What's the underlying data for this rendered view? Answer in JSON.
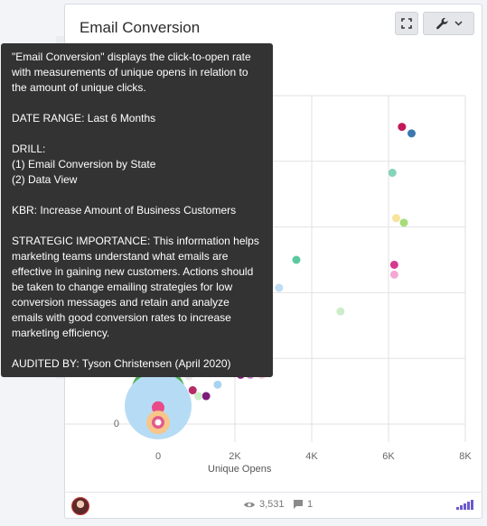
{
  "widget": {
    "title": "Email Conversion",
    "expand_icon": "expand-icon",
    "tools_icon": "wrench-icon",
    "dropdown_icon": "chevron-down-icon"
  },
  "tooltip": {
    "description": "\"Email Conversion\" displays the click-to-open rate with measurements of unique opens in relation to the amount of unique clicks.",
    "date_range": "DATE RANGE: Last 6 Months",
    "drill_heading": "DRILL:",
    "drill_1": "(1) Email Conversion by State",
    "drill_2": "(2) Data View",
    "kbr": "KBR: Increase Amount of Business Customers",
    "strategic": "STRATEGIC IMPORTANCE: This information helps marketing teams understand what emails are effective in gaining new customers. Actions should be taken to change emailing strategies for low conversion messages and retain and analyze emails with good conversion rates to increase marketing efficiency.",
    "audited": "AUDITED BY: Tyson Christensen (April 2020)"
  },
  "footer": {
    "views": "3,531",
    "comments": "1",
    "views_icon": "eye-icon",
    "comments_icon": "comment-icon",
    "signal_icon": "signal-bars-icon"
  },
  "chart_data": {
    "type": "scatter",
    "xlabel": "Unique Opens",
    "ylabel": "",
    "xlim": [
      0,
      8000
    ],
    "x_ticks": [
      0,
      2000,
      4000,
      6000,
      8000
    ],
    "x_tick_labels": [
      "0",
      "2K",
      "4K",
      "6K",
      "8K"
    ],
    "y_tick_labels": [
      "0"
    ],
    "grid": true,
    "points": [
      {
        "x": 6350,
        "yf": 0.905,
        "r": 4.5,
        "color": "#c2185b"
      },
      {
        "x": 6600,
        "yf": 0.885,
        "r": 4.5,
        "color": "#3b78b0"
      },
      {
        "x": 6100,
        "yf": 0.765,
        "r": 4.5,
        "color": "#85d3b8"
      },
      {
        "x": 6200,
        "yf": 0.627,
        "r": 4.5,
        "color": "#f7e39a"
      },
      {
        "x": 6400,
        "yf": 0.613,
        "r": 4.5,
        "color": "#a6dc7a"
      },
      {
        "x": 3600,
        "yf": 0.5,
        "r": 4.5,
        "color": "#5cc8a0"
      },
      {
        "x": 6150,
        "yf": 0.485,
        "r": 4.5,
        "color": "#d6388f"
      },
      {
        "x": 6150,
        "yf": 0.455,
        "r": 4.5,
        "color": "#f3a8d2"
      },
      {
        "x": 3150,
        "yf": 0.415,
        "r": 4.5,
        "color": "#bfdcf5"
      },
      {
        "x": 4750,
        "yf": 0.343,
        "r": 4.5,
        "color": "#cdeccb"
      },
      {
        "x": 2150,
        "yf": 0.15,
        "r": 4.5,
        "color": "#8e1d8e"
      },
      {
        "x": 2400,
        "yf": 0.15,
        "r": 4.5,
        "color": "#c886c8"
      },
      {
        "x": 2700,
        "yf": 0.15,
        "r": 4.5,
        "color": "#f5c7e0"
      },
      {
        "x": 1750,
        "yf": 0.155,
        "r": 4.5,
        "color": "#cccccc"
      },
      {
        "x": 1550,
        "yf": 0.12,
        "r": 4.5,
        "color": "#a9d3f0"
      },
      {
        "x": 1250,
        "yf": 0.085,
        "r": 4.5,
        "color": "#7b1c7b"
      },
      {
        "x": 1050,
        "yf": 0.085,
        "r": 4.5,
        "color": "#cdeccb"
      },
      {
        "x": 900,
        "yf": 0.103,
        "r": 4.5,
        "color": "#b72a66"
      },
      {
        "x": 800,
        "yf": 0.145,
        "r": 4.5,
        "color": "#e8e8e8"
      },
      {
        "x": 0,
        "yf": 0.095,
        "r": 30,
        "color": "#4caf50"
      },
      {
        "x": 0,
        "yf": 0.055,
        "r": 37,
        "color": "#b6dcf5"
      },
      {
        "x": 0,
        "yf": 0.05,
        "r": 7,
        "color": "#e94b8a"
      },
      {
        "x": 0,
        "yf": 0.005,
        "r": 13,
        "color": "#f8c58b"
      },
      {
        "x": 0,
        "yf": 0.005,
        "r": 7,
        "color": "#e15b8c"
      },
      {
        "x": 0,
        "yf": 0.005,
        "r": 3.5,
        "color": "#ffffff"
      }
    ]
  }
}
